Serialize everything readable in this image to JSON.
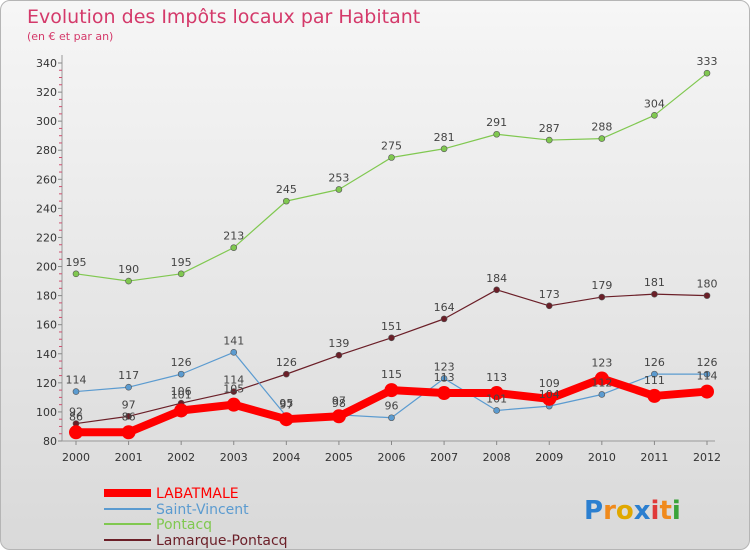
{
  "header": {
    "title": "Evolution des Impôts locaux par Habitant",
    "subtitle": "(en € et par an)"
  },
  "logo": {
    "text": "Proxiti"
  },
  "chart_data": {
    "type": "line",
    "title": "Evolution des Impôts locaux par Habitant",
    "subtitle": "(en € et par an)",
    "xlabel": "",
    "ylabel": "",
    "x": [
      "2000",
      "2001",
      "2002",
      "2003",
      "2004",
      "2005",
      "2006",
      "2007",
      "2008",
      "2009",
      "2010",
      "2011",
      "2012"
    ],
    "ylim": [
      80,
      340
    ],
    "yticks": [
      80,
      100,
      120,
      140,
      160,
      180,
      200,
      220,
      240,
      260,
      280,
      300,
      320,
      340
    ],
    "grid": false,
    "legend_position": "bottom-left",
    "series": [
      {
        "name": "LABATMALE",
        "color": "#ff0000",
        "values": [
          86,
          86,
          101,
          105,
          95,
          97,
          115,
          113,
          113,
          109,
          123,
          111,
          114
        ],
        "labels": [
          "86",
          "86",
          "101",
          "105",
          "95",
          "97",
          "115",
          "113",
          "113",
          "109",
          "123",
          "111",
          "114"
        ]
      },
      {
        "name": "Saint-Vincent",
        "color": "#5b9bd0",
        "values": [
          114,
          117,
          126,
          141,
          97,
          98,
          96,
          123,
          101,
          104,
          112,
          126,
          126
        ],
        "labels": [
          "114",
          "117",
          "126",
          "141",
          "97",
          "98",
          "96",
          "123",
          "101",
          "104",
          "112",
          "126",
          "126"
        ]
      },
      {
        "name": "Pontacq",
        "color": "#80c850",
        "values": [
          195,
          190,
          195,
          213,
          245,
          253,
          275,
          281,
          291,
          287,
          288,
          304,
          333
        ],
        "labels": [
          "195",
          "190",
          "195",
          "213",
          "245",
          "253",
          "275",
          "281",
          "291",
          "287",
          "288",
          "304",
          "333"
        ]
      },
      {
        "name": "Lamarque-Pontacq",
        "color": "#6b1f28",
        "values": [
          92,
          97,
          106,
          114,
          126,
          139,
          151,
          164,
          184,
          173,
          179,
          181,
          180
        ],
        "labels": [
          "92",
          "97",
          "106",
          "114",
          "126",
          "139",
          "151",
          "164",
          "184",
          "173",
          "179",
          "181",
          "180"
        ]
      }
    ]
  }
}
